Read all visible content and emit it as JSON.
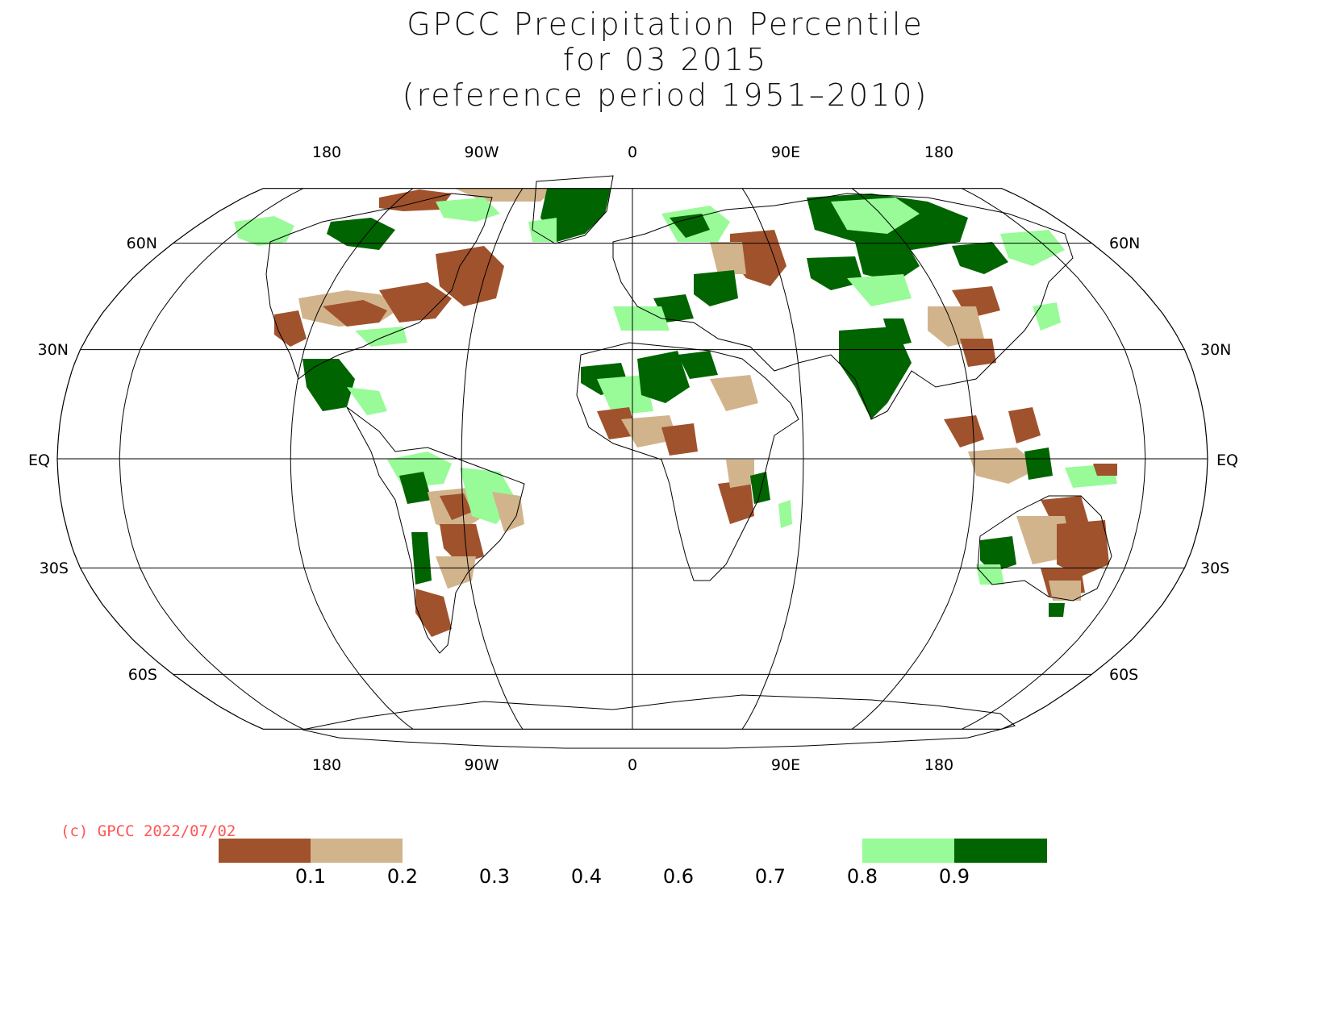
{
  "title": {
    "line1": "GPCC Precipitation Percentile",
    "line2": "for 03 2015",
    "line3": "(reference period 1951–2010)"
  },
  "map": {
    "projection": "Robinson",
    "longitude_labels": [
      "180",
      "90W",
      "0",
      "90E",
      "180"
    ],
    "latitude_labels_left": [
      "60N",
      "30N",
      "EQ",
      "30S",
      "60S"
    ],
    "latitude_labels_right": [
      "60N",
      "30N",
      "EQ",
      "30S",
      "60S"
    ]
  },
  "copyright": "(c) GPCC 2022/07/02",
  "legend": {
    "tick_labels": [
      "0.1",
      "0.2",
      "0.3",
      "0.4",
      "0.6",
      "0.7",
      "0.8",
      "0.9"
    ],
    "colors": {
      "very_dry": "#a0522d",
      "dry": "#d2b48c",
      "wet": "#98fb98",
      "very_wet": "#006400"
    },
    "classes": [
      {
        "range": "< 0.1",
        "color": "#a0522d"
      },
      {
        "range": "0.1 - 0.2",
        "color": "#d2b48c"
      },
      {
        "range": "0.8 - 0.9",
        "color": "#98fb98"
      },
      {
        "range": "> 0.9",
        "color": "#006400"
      }
    ]
  }
}
